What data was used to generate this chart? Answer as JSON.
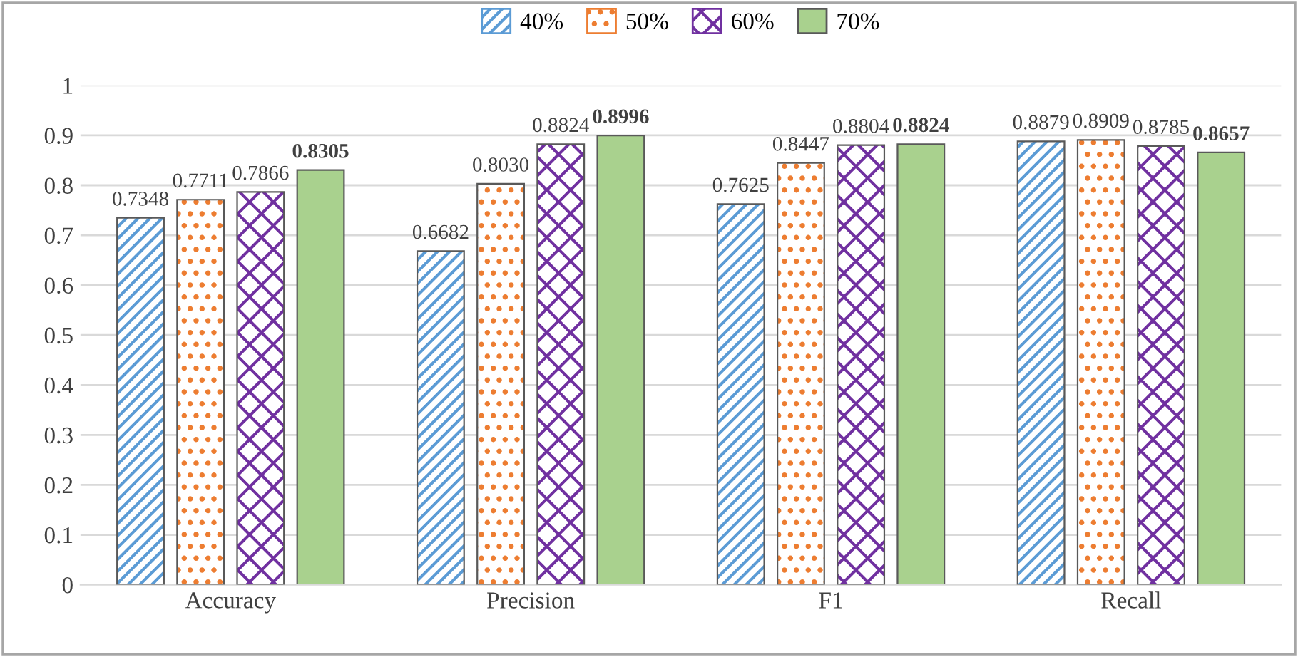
{
  "chart_data": {
    "type": "bar",
    "categories": [
      "Accuracy",
      "Precision",
      "F1",
      "Recall"
    ],
    "series": [
      {
        "name": "40%",
        "color": "#5b9bd5",
        "values": [
          0.7348,
          0.6682,
          0.7625,
          0.8879
        ],
        "value_labels": [
          "0.7348",
          "0.6682",
          "0.7625",
          "0.8879"
        ]
      },
      {
        "name": "50%",
        "color": "#ed7d31",
        "values": [
          0.7711,
          0.803,
          0.8447,
          0.8909
        ],
        "value_labels": [
          "0.7711",
          "0.8030",
          "0.8447",
          "0.8909"
        ]
      },
      {
        "name": "60%",
        "color": "#7030a0",
        "values": [
          0.7866,
          0.8824,
          0.8804,
          0.8785
        ],
        "value_labels": [
          "0.7866",
          "0.8824",
          "0.8804",
          "0.8785"
        ]
      },
      {
        "name": "70%",
        "color": "#a9d18e",
        "values": [
          0.8305,
          0.8996,
          0.8824,
          0.8657
        ],
        "value_labels": [
          "0.8305",
          "0.8996",
          "0.8824",
          "0.8657"
        ]
      }
    ],
    "ylim": [
      0,
      1
    ],
    "yticks": [
      {
        "value": 0,
        "label": "0"
      },
      {
        "value": 0.1,
        "label": "0.1"
      },
      {
        "value": 0.2,
        "label": "0.2"
      },
      {
        "value": 0.3,
        "label": "0.3"
      },
      {
        "value": 0.4,
        "label": "0.4"
      },
      {
        "value": 0.5,
        "label": "0.5"
      },
      {
        "value": 0.6,
        "label": "0.6"
      },
      {
        "value": 0.7,
        "label": "0.7"
      },
      {
        "value": 0.8,
        "label": "0.8"
      },
      {
        "value": 0.9,
        "label": "0.9"
      },
      {
        "value": 1,
        "label": "1"
      }
    ],
    "grid": "y",
    "legend": "top"
  }
}
